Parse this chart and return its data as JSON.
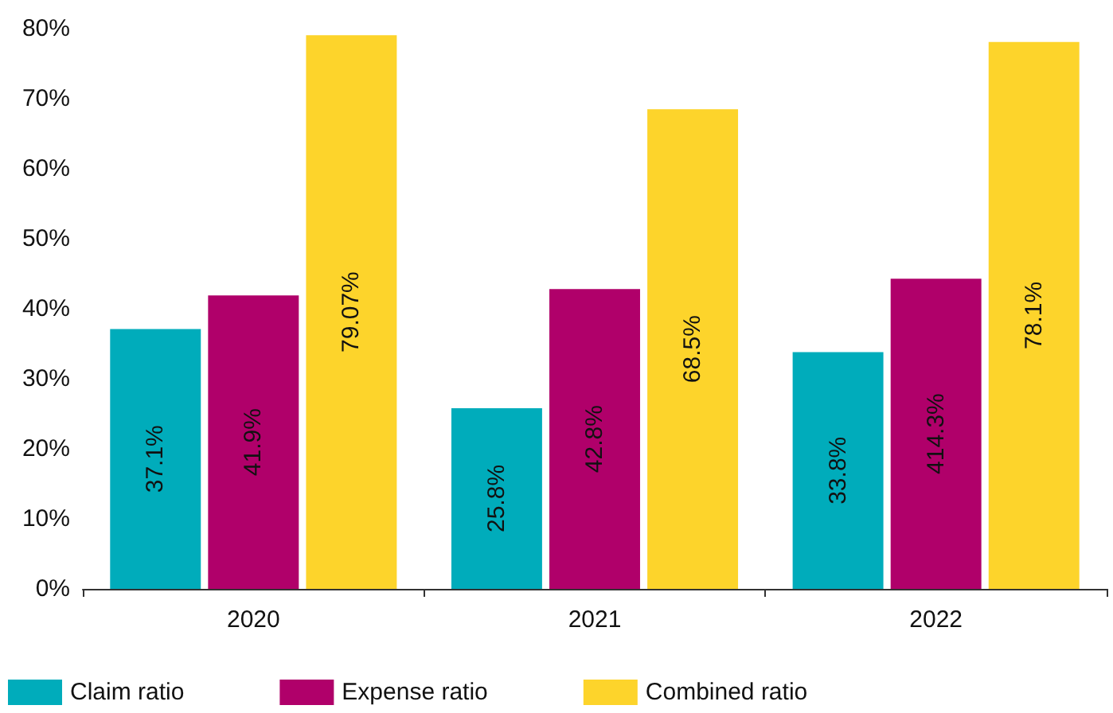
{
  "chart_data": {
    "type": "bar",
    "categories": [
      "2020",
      "2021",
      "2022"
    ],
    "series": [
      {
        "name": "Claim ratio",
        "color": "#00acbb",
        "values": [
          37.1,
          25.8,
          33.8
        ],
        "value_labels": [
          "37.1%",
          "25.8%",
          "33.8%"
        ]
      },
      {
        "name": "Expense ratio",
        "color": "#b0006a",
        "values": [
          41.9,
          42.8,
          44.3
        ],
        "value_labels": [
          "41.9%",
          "42.8%",
          null
        ]
      },
      {
        "name": "Combined ratio",
        "color": "#fdd42b",
        "values": [
          79.07,
          68.5,
          78.1
        ],
        "value_labels": [
          "79.07%",
          "68.5%",
          "78.1%"
        ]
      }
    ],
    "ylim": [
      0,
      80
    ],
    "yticks": [
      {
        "value": 0,
        "label": "0%"
      },
      {
        "value": 10,
        "label": "10%"
      },
      {
        "value": 20,
        "label": "20%"
      },
      {
        "value": 30,
        "label": "30%"
      },
      {
        "value": 40,
        "label": "40%"
      },
      {
        "value": 50,
        "label": "50%"
      },
      {
        "value": 60,
        "label": "60%"
      },
      {
        "value": 70,
        "label": "70%"
      },
      {
        "value": 80,
        "label": "80%"
      }
    ],
    "annotations": [
      "414.3%"
    ],
    "grid": false,
    "legend": "bottom left"
  }
}
